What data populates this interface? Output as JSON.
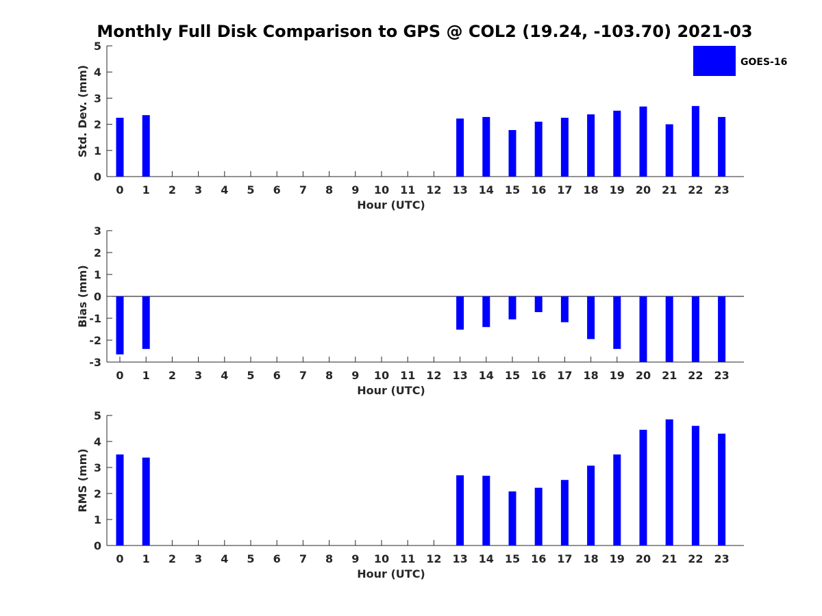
{
  "title": "Monthly Full Disk Comparison to GPS @ COL2 (19.24, -103.70) 2021-03",
  "legend": {
    "label": "GOES-16",
    "color": "#0000ff",
    "position": "top-right"
  },
  "chart_data": [
    {
      "type": "bar",
      "xlabel": "Hour (UTC)",
      "ylabel": "Std. Dev. (mm)",
      "ylim": [
        0,
        5
      ],
      "yticks": [
        "0",
        "1",
        "2",
        "3",
        "4",
        "5"
      ],
      "categories": [
        "0",
        "1",
        "2",
        "3",
        "4",
        "5",
        "6",
        "7",
        "8",
        "9",
        "10",
        "11",
        "12",
        "13",
        "14",
        "15",
        "16",
        "17",
        "18",
        "19",
        "20",
        "21",
        "22",
        "23"
      ],
      "series": [
        {
          "name": "GOES-16",
          "values": [
            2.25,
            2.35,
            null,
            null,
            null,
            null,
            null,
            null,
            null,
            null,
            null,
            null,
            null,
            2.22,
            2.28,
            1.78,
            2.1,
            2.25,
            2.38,
            2.52,
            2.68,
            2.0,
            2.7,
            2.28
          ]
        }
      ]
    },
    {
      "type": "bar",
      "xlabel": "Hour (UTC)",
      "ylabel": "Bias (mm)",
      "ylim": [
        -3,
        3
      ],
      "yticks": [
        "-3",
        "-2",
        "-1",
        "0",
        "1",
        "2",
        "3"
      ],
      "categories": [
        "0",
        "1",
        "2",
        "3",
        "4",
        "5",
        "6",
        "7",
        "8",
        "9",
        "10",
        "11",
        "12",
        "13",
        "14",
        "15",
        "16",
        "17",
        "18",
        "19",
        "20",
        "21",
        "22",
        "23"
      ],
      "series": [
        {
          "name": "GOES-16",
          "values": [
            -2.65,
            -2.4,
            null,
            null,
            null,
            null,
            null,
            null,
            null,
            null,
            null,
            null,
            null,
            -1.52,
            -1.4,
            -1.05,
            -0.72,
            -1.18,
            -1.95,
            -2.4,
            -3.0,
            -3.0,
            -3.0,
            -3.0
          ]
        }
      ]
    },
    {
      "type": "bar",
      "xlabel": "Hour (UTC)",
      "ylabel": "RMS (mm)",
      "ylim": [
        0,
        5
      ],
      "yticks": [
        "0",
        "1",
        "2",
        "3",
        "4",
        "5"
      ],
      "categories": [
        "0",
        "1",
        "2",
        "3",
        "4",
        "5",
        "6",
        "7",
        "8",
        "9",
        "10",
        "11",
        "12",
        "13",
        "14",
        "15",
        "16",
        "17",
        "18",
        "19",
        "20",
        "21",
        "22",
        "23"
      ],
      "series": [
        {
          "name": "GOES-16",
          "values": [
            3.5,
            3.38,
            null,
            null,
            null,
            null,
            null,
            null,
            null,
            null,
            null,
            null,
            null,
            2.7,
            2.68,
            2.08,
            2.22,
            2.52,
            3.07,
            3.5,
            4.45,
            4.85,
            4.6,
            4.3
          ]
        }
      ]
    }
  ]
}
